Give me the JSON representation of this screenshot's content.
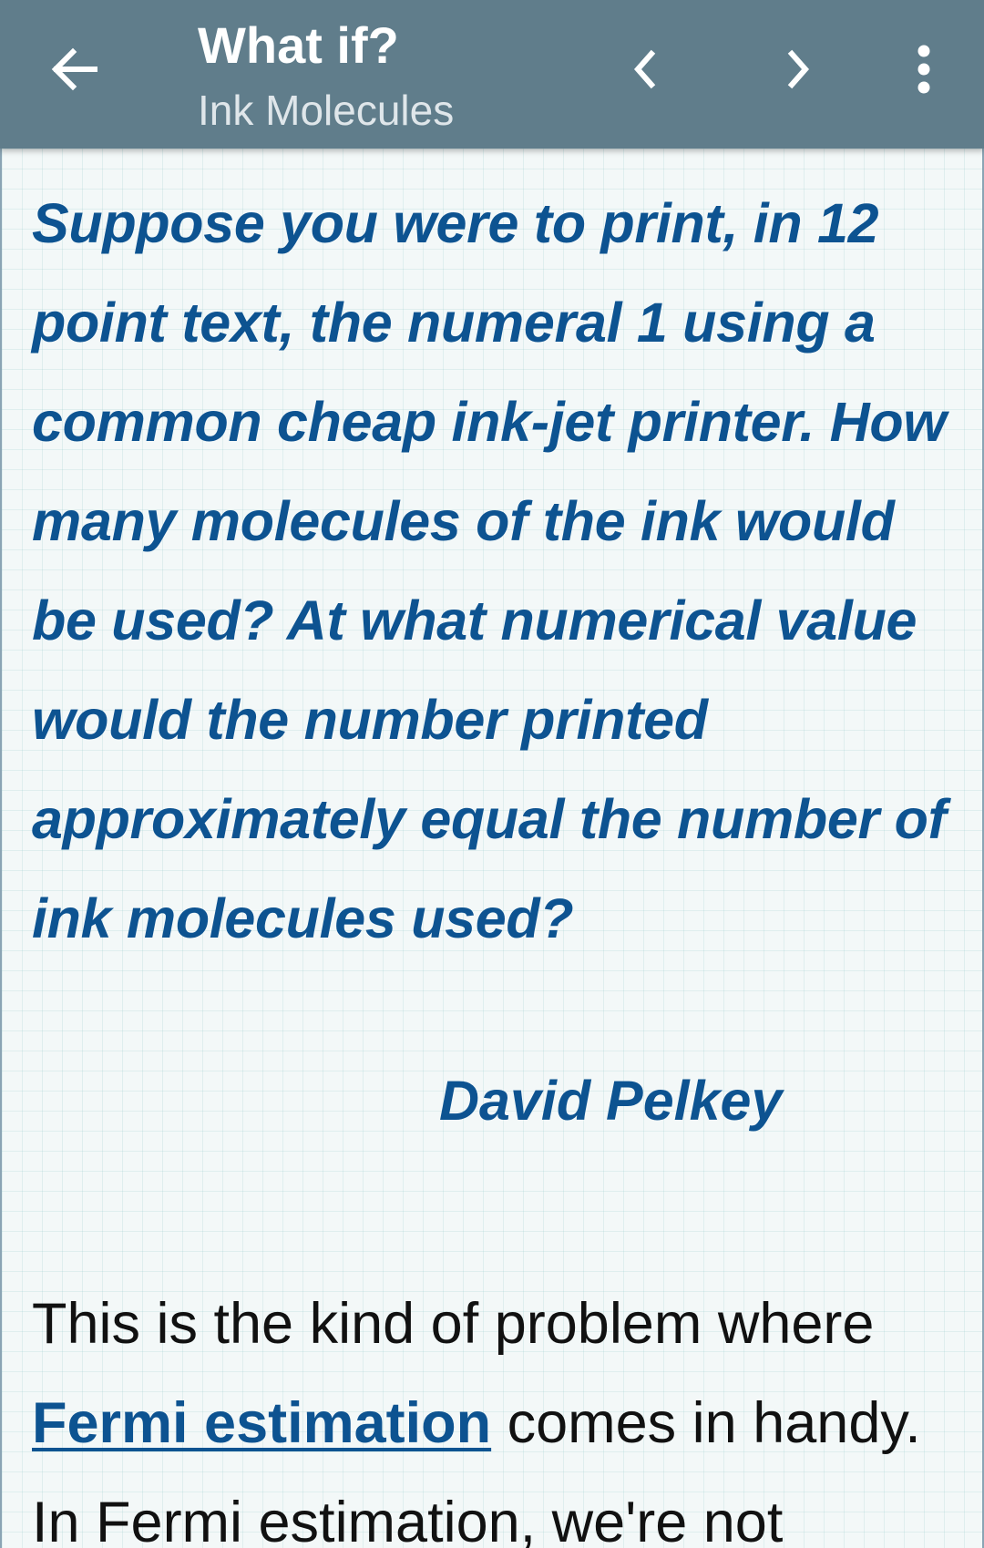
{
  "toolbar": {
    "title": "What if?",
    "subtitle": "Ink Molecules",
    "background_color": "#607d8b",
    "icons": {
      "back": "arrow-back-icon",
      "prev": "chevron-left-icon",
      "next": "chevron-right-icon",
      "menu": "more-vertical-icon"
    }
  },
  "article": {
    "question": "Suppose you were to print, in 12 point text, the numeral 1 using a common cheap ink-jet printer. How many molecules of the ink would be used? At what numerical value would the number printed approximately equal the number of ink molecules used?",
    "asker": "David Pelkey",
    "paragraph_start": "This is the kind of problem where ",
    "link_text": "Fermi estimation",
    "paragraph_after_link": " comes in handy. In Fermi estimation, we're not",
    "question_color": "#0d5391",
    "background_color": "#f3f8f8"
  }
}
